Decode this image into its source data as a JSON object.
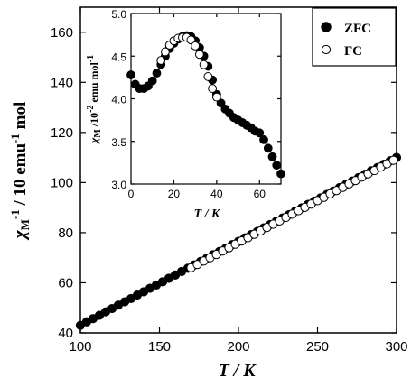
{
  "chart_data": [
    {
      "type": "scatter",
      "title": "",
      "xlabel": "T / K",
      "ylabel": "χM-1 / 10 emu-1 mol",
      "xlim": [
        100,
        300
      ],
      "ylim": [
        40,
        170
      ],
      "xticks": [
        "100",
        "150",
        "200",
        "250",
        "300"
      ],
      "yticks": [
        "40",
        "60",
        "80",
        "100",
        "120",
        "140",
        "160"
      ],
      "legend_position": "top-right",
      "series": [
        {
          "name": "ZFC",
          "marker": "filled-circle",
          "color": "#000000",
          "x": [
            100,
            104,
            108,
            112,
            116,
            120,
            124,
            128,
            132,
            136,
            140,
            144,
            148,
            152,
            156,
            160,
            164,
            168,
            172,
            176,
            180,
            184,
            188,
            192,
            196,
            200,
            204,
            208,
            212,
            216,
            220,
            224,
            228,
            232,
            236,
            240,
            244,
            248,
            252,
            256,
            260,
            264,
            268,
            272,
            276,
            280,
            284,
            288,
            292,
            296,
            300
          ],
          "y": [
            43.0,
            44.4,
            45.7,
            47.0,
            48.4,
            49.7,
            51.1,
            52.4,
            53.7,
            55.1,
            56.4,
            57.8,
            59.1,
            60.4,
            61.8,
            63.1,
            64.5,
            65.8,
            67.1,
            68.5,
            69.8,
            71.2,
            72.5,
            73.8,
            75.2,
            76.5,
            77.9,
            79.2,
            80.5,
            81.9,
            83.2,
            84.6,
            85.9,
            87.2,
            88.6,
            89.9,
            91.3,
            92.6,
            93.9,
            95.3,
            96.6,
            98.0,
            99.3,
            100.6,
            102.0,
            103.3,
            104.7,
            106.0,
            107.3,
            108.7,
            110.0
          ]
        },
        {
          "name": "FC",
          "marker": "open-circle",
          "color": "#000000",
          "x": [
            170,
            174,
            178,
            182,
            186,
            190,
            194,
            198,
            202,
            206,
            210,
            214,
            218,
            222,
            226,
            230,
            234,
            238,
            242,
            246,
            250,
            254,
            258,
            262,
            266,
            270,
            274,
            278,
            282,
            286,
            290,
            294,
            298
          ],
          "y": [
            66.0,
            67.3,
            68.7,
            70.0,
            71.3,
            72.7,
            74.0,
            75.4,
            76.7,
            78.0,
            79.4,
            80.7,
            82.1,
            83.4,
            84.7,
            86.1,
            87.4,
            88.8,
            90.1,
            91.4,
            92.8,
            94.1,
            95.5,
            96.8,
            98.1,
            99.5,
            100.8,
            102.2,
            103.5,
            104.8,
            106.2,
            107.5,
            108.9
          ]
        }
      ]
    },
    {
      "type": "scatter",
      "title": "",
      "xlabel": "T / K",
      "ylabel": "χM /10-2 emu mol-1",
      "xlim": [
        0,
        70
      ],
      "ylim": [
        3.0,
        5.0
      ],
      "xticks": [
        "0",
        "20",
        "40",
        "60"
      ],
      "yticks": [
        "3.0",
        "3.5",
        "4.0",
        "4.5",
        "5.0"
      ],
      "series": [
        {
          "name": "ZFC",
          "marker": "filled-circle",
          "color": "#000000",
          "x": [
            0,
            2,
            4,
            6,
            8,
            10,
            12,
            14,
            16,
            18,
            20,
            22,
            24,
            26,
            28,
            30,
            32,
            34,
            36,
            38,
            40,
            42,
            44,
            46,
            48,
            50,
            52,
            54,
            56,
            58,
            60,
            62,
            64,
            66,
            68,
            70
          ],
          "y": [
            4.28,
            4.17,
            4.12,
            4.12,
            4.15,
            4.21,
            4.3,
            4.4,
            4.5,
            4.59,
            4.65,
            4.7,
            4.73,
            4.74,
            4.73,
            4.68,
            4.6,
            4.5,
            4.38,
            4.22,
            4.05,
            3.95,
            3.88,
            3.83,
            3.78,
            3.75,
            3.72,
            3.69,
            3.66,
            3.62,
            3.6,
            3.52,
            3.42,
            3.32,
            3.22,
            3.12
          ]
        },
        {
          "name": "FC",
          "marker": "open-circle",
          "color": "#000000",
          "x": [
            14,
            16,
            18,
            20,
            22,
            24,
            26,
            28,
            30,
            32,
            34,
            36,
            38,
            40
          ],
          "y": [
            4.45,
            4.55,
            4.63,
            4.68,
            4.71,
            4.72,
            4.72,
            4.69,
            4.62,
            4.52,
            4.4,
            4.26,
            4.12,
            4.02
          ]
        }
      ]
    }
  ]
}
